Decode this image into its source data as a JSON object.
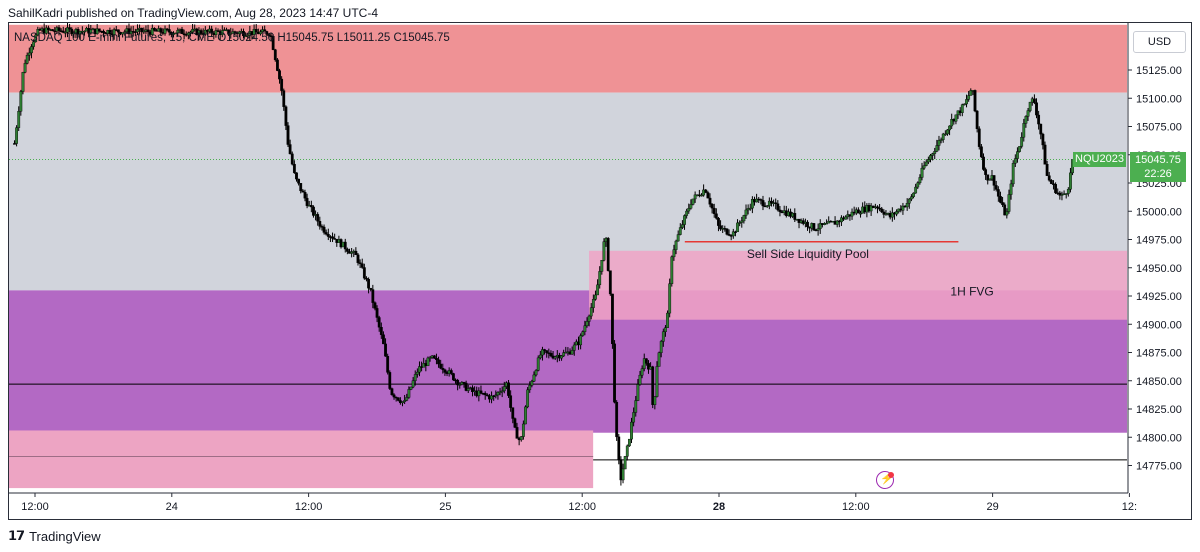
{
  "header": {
    "attribution": "SahilKadri published on TradingView.com, Aug 28, 2023 14:47 UTC-4",
    "legend": "NASDAQ 100 E-mini Futures, 15, CME  O15024.50  H15045.75  L15011.25  C15045.75"
  },
  "toolbar": {
    "currency": "USD"
  },
  "last_price": {
    "symbol": "NQU2023",
    "price": "15045.75",
    "countdown": "22:26",
    "color": "#4caf50"
  },
  "footer": {
    "brand": "TradingView"
  },
  "colors": {
    "supply_zone": "#ef9295",
    "gray_band": "#d1d4dc",
    "demand_purple": "#b369c4",
    "fvg_pink": "#f0a3c6",
    "lower_pink": "#eda4c3",
    "candle_up": "#2e7d32",
    "candle_down": "#000000",
    "liquidity_line": "#e53935"
  },
  "chart_data": {
    "type": "candlestick",
    "instrument": "NASDAQ 100 E-mini Futures",
    "interval": "15",
    "exchange": "CME",
    "ohlc_last": {
      "open": 15024.5,
      "high": 15045.75,
      "low": 15011.25,
      "close": 15045.75
    },
    "ylim": [
      14755,
      15165
    ],
    "y_ticks": [
      15125,
      15100,
      15075,
      15050,
      15025,
      15000,
      14975,
      14950,
      14925,
      14900,
      14875,
      14850,
      14825,
      14800,
      14775
    ],
    "y_tick_labels": [
      "15125.00",
      "15100.00",
      "15075.00",
      "15050.00",
      "15025.00",
      "15000.00",
      "14975.00",
      "14950.00",
      "14925.00",
      "14900.00",
      "14875.00",
      "14850.00",
      "14825.00",
      "14800.00",
      "14775.00"
    ],
    "x_ticks": [
      {
        "t": 0.0,
        "label": "12:00"
      },
      {
        "t": 1.0,
        "label": "24"
      },
      {
        "t": 2.0,
        "label": "12:00"
      },
      {
        "t": 3.0,
        "label": "25"
      },
      {
        "t": 4.0,
        "label": "12:00"
      },
      {
        "t": 5.0,
        "label": "28"
      },
      {
        "t": 6.0,
        "label": "12:00"
      },
      {
        "t": 7.0,
        "label": "29"
      },
      {
        "t": 8.0,
        "label": "12:"
      }
    ],
    "zones": [
      {
        "name": "supply",
        "t0": -0.2,
        "t1": 8.2,
        "top": 15165,
        "bottom": 15105,
        "color": "#ef9295"
      },
      {
        "name": "range",
        "t0": -0.2,
        "t1": 8.2,
        "top": 15105,
        "bottom": 14930,
        "color": "#d1d4dc"
      },
      {
        "name": "demand",
        "t0": -0.2,
        "t1": 8.2,
        "top": 14930,
        "bottom": 14804,
        "color": "#b369c4"
      },
      {
        "name": "1h-fvg",
        "t0": 4.05,
        "t1": 8.2,
        "top": 14965,
        "bottom": 14904,
        "color": "#f0a3c6"
      },
      {
        "name": "lower",
        "t0": -0.2,
        "t1": 4.08,
        "top": 14806,
        "bottom": 14755,
        "color": "#eda4c3"
      }
    ],
    "lines": [
      {
        "name": "sell-side-liquidity",
        "t0": 4.75,
        "t1": 6.75,
        "price": 14973,
        "color": "#e53935"
      },
      {
        "name": "level-14847",
        "t0": -0.2,
        "t1": 8.2,
        "price": 14847,
        "color": "#000000"
      },
      {
        "name": "level-14780",
        "t0": 4.08,
        "t1": 8.2,
        "price": 14780,
        "color": "#000000"
      },
      {
        "name": "level-14783-lower",
        "t0": -0.2,
        "t1": 4.08,
        "price": 14783,
        "color": "#9e6d86"
      }
    ],
    "annotations": [
      {
        "text": "Sell Side Liquidity Pool",
        "t": 5.65,
        "price": 14962
      },
      {
        "text": "1H FVG",
        "t": 6.85,
        "price": 14929
      }
    ],
    "price_path": [
      [
        -0.15,
        15060
      ],
      [
        -0.12,
        15090
      ],
      [
        -0.08,
        15130
      ],
      [
        -0.02,
        15150
      ],
      [
        0.03,
        15160
      ],
      [
        1.72,
        15158
      ],
      [
        1.8,
        15110
      ],
      [
        1.85,
        15060
      ],
      [
        1.9,
        15030
      ],
      [
        2.0,
        15005
      ],
      [
        2.1,
        14985
      ],
      [
        2.2,
        14975
      ],
      [
        2.35,
        14960
      ],
      [
        2.45,
        14930
      ],
      [
        2.55,
        14880
      ],
      [
        2.6,
        14840
      ],
      [
        2.7,
        14830
      ],
      [
        2.8,
        14860
      ],
      [
        2.9,
        14870
      ],
      [
        3.0,
        14860
      ],
      [
        3.1,
        14848
      ],
      [
        3.2,
        14840
      ],
      [
        3.35,
        14835
      ],
      [
        3.45,
        14848
      ],
      [
        3.5,
        14808
      ],
      [
        3.55,
        14795
      ],
      [
        3.6,
        14840
      ],
      [
        3.7,
        14875
      ],
      [
        3.8,
        14872
      ],
      [
        3.9,
        14875
      ],
      [
        3.98,
        14885
      ],
      [
        4.05,
        14910
      ],
      [
        4.1,
        14925
      ],
      [
        4.17,
        14980
      ],
      [
        4.21,
        14920
      ],
      [
        4.23,
        14850
      ],
      [
        4.25,
        14800
      ],
      [
        4.28,
        14762
      ],
      [
        4.33,
        14790
      ],
      [
        4.4,
        14840
      ],
      [
        4.45,
        14870
      ],
      [
        4.5,
        14860
      ],
      [
        4.52,
        14820
      ],
      [
        4.55,
        14870
      ],
      [
        4.6,
        14895
      ],
      [
        4.63,
        14910
      ],
      [
        4.65,
        14960
      ],
      [
        4.72,
        14985
      ],
      [
        4.8,
        15010
      ],
      [
        4.9,
        15020
      ],
      [
        5.0,
        14985
      ],
      [
        5.1,
        14980
      ],
      [
        5.25,
        15010
      ],
      [
        5.4,
        15005
      ],
      [
        5.55,
        14995
      ],
      [
        5.7,
        14985
      ],
      [
        5.85,
        14990
      ],
      [
        6.0,
        15000
      ],
      [
        6.15,
        15005
      ],
      [
        6.25,
        14995
      ],
      [
        6.4,
        15010
      ],
      [
        6.5,
        15040
      ],
      [
        6.6,
        15060
      ],
      [
        6.7,
        15080
      ],
      [
        6.8,
        15095
      ],
      [
        6.85,
        15110
      ],
      [
        6.9,
        15060
      ],
      [
        6.95,
        15030
      ],
      [
        7.0,
        15030
      ],
      [
        7.05,
        15010
      ],
      [
        7.1,
        14995
      ],
      [
        7.15,
        15040
      ],
      [
        7.2,
        15060
      ],
      [
        7.25,
        15090
      ],
      [
        7.3,
        15100
      ],
      [
        7.35,
        15070
      ],
      [
        7.4,
        15030
      ],
      [
        7.5,
        15012
      ],
      [
        7.55,
        15020
      ],
      [
        7.58,
        15040
      ],
      [
        7.6,
        15045.75
      ]
    ]
  }
}
